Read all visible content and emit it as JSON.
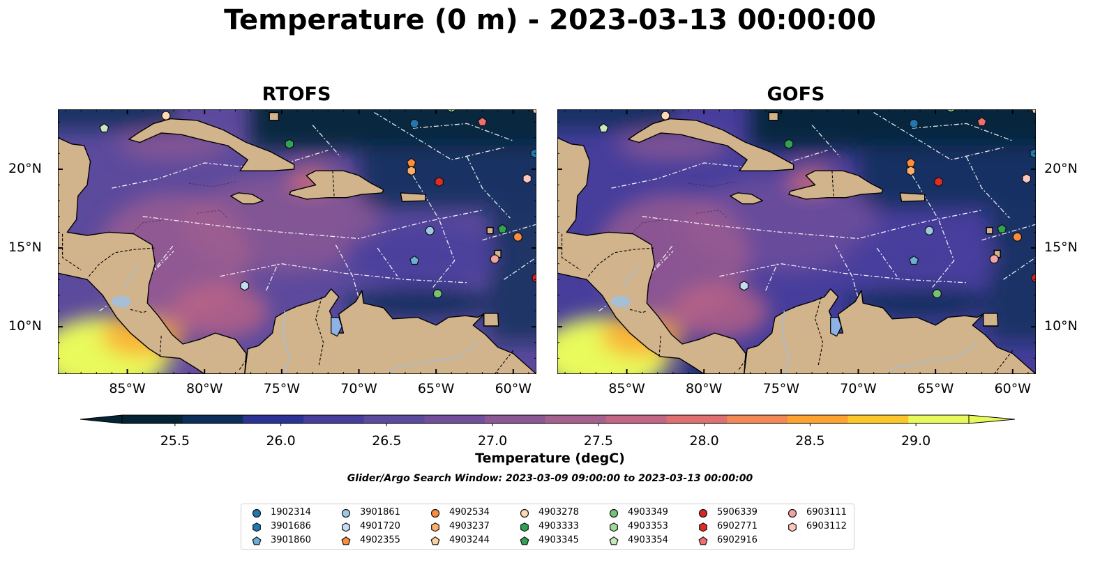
{
  "title": "Temperature (0 m) - 2023-03-13 00:00:00",
  "panels": [
    {
      "title": "RTOFS",
      "variant": "rtofs"
    },
    {
      "title": "GOFS",
      "variant": "gofs"
    }
  ],
  "map": {
    "lon_range": [
      -89.5,
      -58.5
    ],
    "lat_range": [
      7.0,
      23.8
    ],
    "lon_ticks": [
      "85°W",
      "80°W",
      "75°W",
      "70°W",
      "65°W",
      "60°W"
    ],
    "lat_ticks": [
      "20°N",
      "15°N",
      "10°N"
    ],
    "land_color": "#d2b48c",
    "ocean_gradient_colors": [
      "#042333",
      "#0d2e59",
      "#2c3395",
      "#473e9c",
      "#5c4a9d",
      "#714f9b",
      "#8c5894",
      "#a6608e",
      "#c26684",
      "#dd7071",
      "#f18856",
      "#fca42f",
      "#fcc72a",
      "#e8fa5b"
    ]
  },
  "colorbar": {
    "label": "Temperature (degC)",
    "ticks": [
      "25.5",
      "26.0",
      "26.5",
      "27.0",
      "27.5",
      "28.0",
      "28.5",
      "29.0"
    ],
    "extend": "both"
  },
  "search_window": "Glider/Argo Search Window: 2023-03-09 09:00:00 to 2023-03-13 00:00:00",
  "floats": [
    {
      "id": "1902314",
      "marker": "circle",
      "color": "#1f77b4",
      "lon": -66.4,
      "lat": 22.9
    },
    {
      "id": "3901686",
      "marker": "hexagon",
      "color": "#1f77b4",
      "lon": -58.6,
      "lat": 21.0
    },
    {
      "id": "3901860",
      "marker": "pentagon",
      "color": "#6baed6",
      "lon": -66.4,
      "lat": 14.2
    },
    {
      "id": "3901861",
      "marker": "circle",
      "color": "#9ecae1",
      "lon": -65.4,
      "lat": 16.1
    },
    {
      "id": "4901720",
      "marker": "hexagon",
      "color": "#c6dbef",
      "lon": -77.4,
      "lat": 12.6
    },
    {
      "id": "4902355",
      "marker": "pentagon",
      "color": "#fd8d3c",
      "lon": -66.6,
      "lat": 20.4
    },
    {
      "id": "4902534",
      "marker": "circle",
      "color": "#fd8d3c",
      "lon": -59.7,
      "lat": 15.7
    },
    {
      "id": "4903237",
      "marker": "hexagon",
      "color": "#fdae6b",
      "lon": -66.6,
      "lat": 19.9
    },
    {
      "id": "4903244",
      "marker": "pentagon",
      "color": "#fdd0a2",
      "lon": -58.5,
      "lat": 23.8
    },
    {
      "id": "4903278",
      "marker": "circle",
      "color": "#fdd9b5",
      "lon": -82.5,
      "lat": 23.4
    },
    {
      "id": "4903333",
      "marker": "hexagon",
      "color": "#31a354",
      "lon": -74.5,
      "lat": 21.6
    },
    {
      "id": "4903345",
      "marker": "pentagon",
      "color": "#31a354",
      "lon": -60.7,
      "lat": 16.2
    },
    {
      "id": "4903349",
      "marker": "circle",
      "color": "#74c476",
      "lon": -64.9,
      "lat": 12.1
    },
    {
      "id": "4903353",
      "marker": "hexagon",
      "color": "#a1d99b",
      "lon": -64.0,
      "lat": 23.9
    },
    {
      "id": "4903354",
      "marker": "pentagon",
      "color": "#c7e9c0",
      "lon": -86.5,
      "lat": 22.6
    },
    {
      "id": "5906339",
      "marker": "circle",
      "color": "#d62728",
      "lon": -58.5,
      "lat": 13.1
    },
    {
      "id": "6902771",
      "marker": "hexagon",
      "color": "#de2d26",
      "lon": -64.8,
      "lat": 19.2
    },
    {
      "id": "6902916",
      "marker": "pentagon",
      "color": "#f07070",
      "lon": -62.0,
      "lat": 23.0
    },
    {
      "id": "6903111",
      "marker": "circle",
      "color": "#f4a3a3",
      "lon": -61.2,
      "lat": 14.3
    },
    {
      "id": "6903112",
      "marker": "hexagon",
      "color": "#fcc5c0",
      "lon": -59.1,
      "lat": 19.4
    }
  ]
}
